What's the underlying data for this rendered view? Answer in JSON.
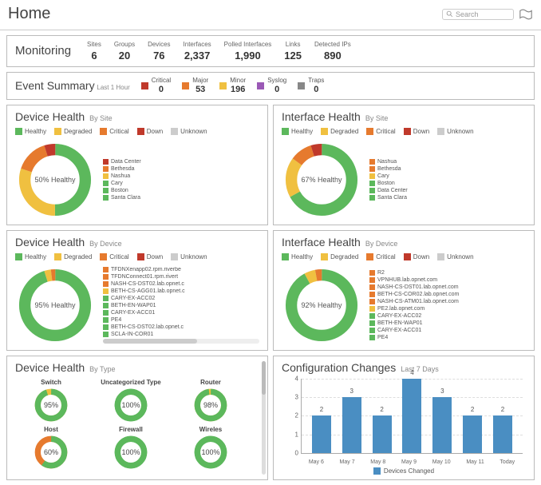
{
  "colors": {
    "healthy": "#5cb85c",
    "degraded": "#f0c040",
    "critical": "#e67a2e",
    "down": "#c0392b",
    "unknown": "#cccccc",
    "major": "#e67a2e",
    "minor": "#f0c040",
    "syslog": "#9b59b6",
    "traps": "#888888",
    "bar": "#4a8ec2"
  },
  "header": {
    "title": "Home",
    "search_placeholder": "Search"
  },
  "monitoring": {
    "title": "Monitoring",
    "stats": [
      {
        "label": "Sites",
        "value": "6"
      },
      {
        "label": "Groups",
        "value": "20"
      },
      {
        "label": "Devices",
        "value": "76"
      },
      {
        "label": "Interfaces",
        "value": "2,337"
      },
      {
        "label": "Polled Interfaces",
        "value": "1,990"
      },
      {
        "label": "Links",
        "value": "125"
      },
      {
        "label": "Detected IPs",
        "value": "890"
      }
    ]
  },
  "event_summary": {
    "title": "Event Summary",
    "subtitle": "Last 1 Hour",
    "cats": [
      {
        "name": "Critical",
        "count": "0",
        "color": "#c0392b"
      },
      {
        "name": "Major",
        "count": "53",
        "color": "#e67a2e"
      },
      {
        "name": "Minor",
        "count": "196",
        "color": "#f0c040"
      },
      {
        "name": "Syslog",
        "count": "0",
        "color": "#9b59b6"
      },
      {
        "name": "Traps",
        "count": "0",
        "color": "#888888"
      }
    ]
  },
  "health_legend": [
    {
      "name": "Healthy",
      "color": "#5cb85c"
    },
    {
      "name": "Degraded",
      "color": "#f0c040"
    },
    {
      "name": "Critical",
      "color": "#e67a2e"
    },
    {
      "name": "Down",
      "color": "#c0392b"
    },
    {
      "name": "Unknown",
      "color": "#cccccc"
    }
  ],
  "device_health_site": {
    "title": "Device Health",
    "subtitle": "By Site",
    "center": "50% Healthy",
    "segments": [
      {
        "color": "#5cb85c",
        "frac": 0.5
      },
      {
        "color": "#f0c040",
        "frac": 0.3
      },
      {
        "color": "#e67a2e",
        "frac": 0.15
      },
      {
        "color": "#c0392b",
        "frac": 0.05
      }
    ],
    "sites": [
      {
        "name": "Data Center",
        "color": "#c0392b"
      },
      {
        "name": "Bethesda",
        "color": "#e67a2e"
      },
      {
        "name": "Nashua",
        "color": "#f0c040"
      },
      {
        "name": "Cary",
        "color": "#5cb85c"
      },
      {
        "name": "Boston",
        "color": "#5cb85c"
      },
      {
        "name": "Santa Clara",
        "color": "#5cb85c"
      }
    ]
  },
  "interface_health_site": {
    "title": "Interface Health",
    "subtitle": "By Site",
    "center": "67% Healthy",
    "segments": [
      {
        "color": "#5cb85c",
        "frac": 0.67
      },
      {
        "color": "#f0c040",
        "frac": 0.18
      },
      {
        "color": "#e67a2e",
        "frac": 0.1
      },
      {
        "color": "#c0392b",
        "frac": 0.05
      }
    ],
    "sites": [
      {
        "name": "Nashua",
        "color": "#e67a2e"
      },
      {
        "name": "Bethesda",
        "color": "#e67a2e"
      },
      {
        "name": "Cary",
        "color": "#f0c040"
      },
      {
        "name": "Boston",
        "color": "#5cb85c"
      },
      {
        "name": "Data Center",
        "color": "#5cb85c"
      },
      {
        "name": "Santa Clara",
        "color": "#5cb85c"
      }
    ]
  },
  "device_health_device": {
    "title": "Device Health",
    "subtitle": "By Device",
    "center": "95% Healthy",
    "segments": [
      {
        "color": "#5cb85c",
        "frac": 0.95
      },
      {
        "color": "#f0c040",
        "frac": 0.03
      },
      {
        "color": "#e67a2e",
        "frac": 0.02
      }
    ],
    "items": [
      {
        "name": "TFDNXenapp02.rpm.riverbe",
        "color": "#e67a2e"
      },
      {
        "name": "TFDNConnect01.rpm.rivert",
        "color": "#e67a2e"
      },
      {
        "name": "NASH-CS-DST02.lab.opnet.c",
        "color": "#e67a2e"
      },
      {
        "name": "BETH-CS-AGG01.lab.opnet.c",
        "color": "#f0c040"
      },
      {
        "name": "CARY-EX-ACC02",
        "color": "#5cb85c"
      },
      {
        "name": "BETH-EN-WAP01",
        "color": "#5cb85c"
      },
      {
        "name": "CARY-EX-ACC01",
        "color": "#5cb85c"
      },
      {
        "name": "PE4",
        "color": "#5cb85c"
      },
      {
        "name": "BETH-CS-DST02.lab.opnet.c",
        "color": "#5cb85c"
      },
      {
        "name": "SCLA-IN-COR01",
        "color": "#5cb85c"
      }
    ]
  },
  "interface_health_device": {
    "title": "Interface Health",
    "subtitle": "By Device",
    "center": "92% Healthy",
    "segments": [
      {
        "color": "#5cb85c",
        "frac": 0.92
      },
      {
        "color": "#f0c040",
        "frac": 0.05
      },
      {
        "color": "#e67a2e",
        "frac": 0.03
      }
    ],
    "items": [
      {
        "name": "R2",
        "color": "#e67a2e"
      },
      {
        "name": "VPNHUB.lab.opnet.com",
        "color": "#e67a2e"
      },
      {
        "name": "NASH-CS-DST01.lab.opnet.com",
        "color": "#e67a2e"
      },
      {
        "name": "BETH-CS-COR02.lab.opnet.com",
        "color": "#e67a2e"
      },
      {
        "name": "NASH-CS-ATM01.lab.opnet.com",
        "color": "#e67a2e"
      },
      {
        "name": "PE2.lab.opnet.com",
        "color": "#f0c040"
      },
      {
        "name": "CARY-EX-ACC02",
        "color": "#5cb85c"
      },
      {
        "name": "BETH-EN-WAP01",
        "color": "#5cb85c"
      },
      {
        "name": "CARY-EX-ACC01",
        "color": "#5cb85c"
      },
      {
        "name": "PE4",
        "color": "#5cb85c"
      }
    ]
  },
  "device_health_type": {
    "title": "Device Health",
    "subtitle": "By Type",
    "types": [
      {
        "name": "Switch",
        "pct": 95,
        "color": "#5cb85c",
        "rem": "#f0c040"
      },
      {
        "name": "Uncategorized Type",
        "pct": 100,
        "color": "#5cb85c",
        "rem": "#5cb85c"
      },
      {
        "name": "Router",
        "pct": 98,
        "color": "#5cb85c",
        "rem": "#f0c040"
      },
      {
        "name": "Host",
        "pct": 60,
        "color": "#5cb85c",
        "rem": "#e67a2e"
      },
      {
        "name": "Firewall",
        "pct": 100,
        "color": "#5cb85c",
        "rem": "#5cb85c"
      },
      {
        "name": "Wireles",
        "pct": 100,
        "color": "#5cb85c",
        "rem": "#5cb85c"
      }
    ]
  },
  "config_changes": {
    "title": "Configuration Changes",
    "subtitle": "Last 7 Days",
    "ymax": 4,
    "yticks": [
      0,
      1,
      2,
      3,
      4
    ],
    "bars": [
      {
        "label": "May 6",
        "value": 2
      },
      {
        "label": "May 7",
        "value": 3
      },
      {
        "label": "May 8",
        "value": 2
      },
      {
        "label": "May 9",
        "value": 4
      },
      {
        "label": "May 10",
        "value": 3
      },
      {
        "label": "May 11",
        "value": 2
      },
      {
        "label": "Today",
        "value": 2
      }
    ],
    "legend": "Devices Changed"
  }
}
